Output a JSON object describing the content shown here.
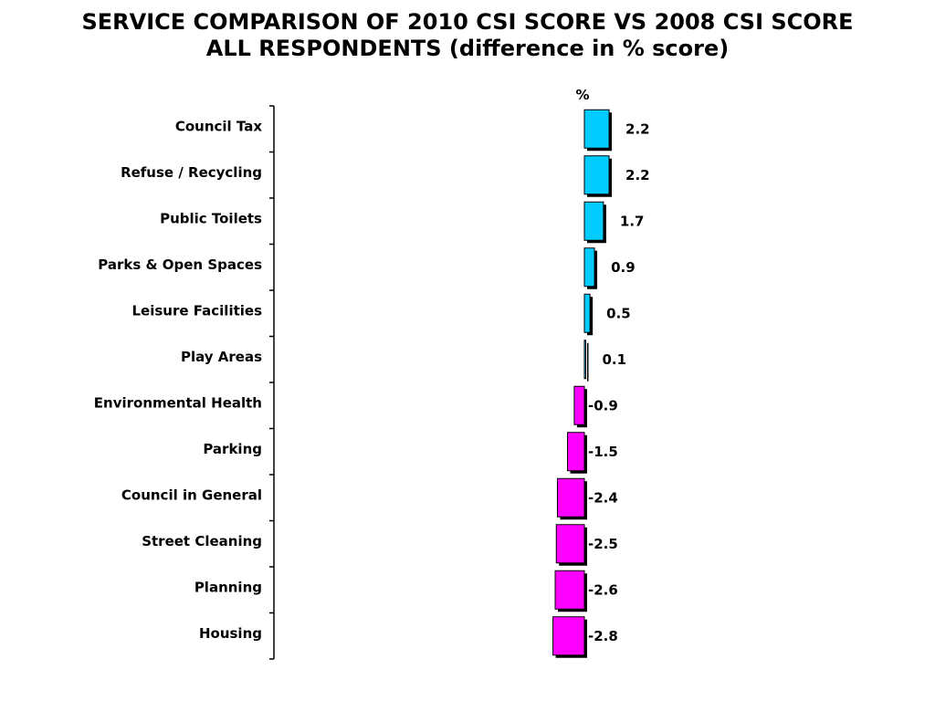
{
  "title_line1": "SERVICE COMPARISON OF 2010 CSI SCORE VS 2008 CSI SCORE",
  "title_line2": "ALL RESPONDENTS (difference in % score)",
  "colors": {
    "positive": "#00CCFF",
    "negative": "#FF00FF",
    "shadow": "#000000",
    "axis": "#000000"
  },
  "chart_data": {
    "type": "bar",
    "orientation": "horizontal",
    "title": "SERVICE COMPARISON OF 2010 CSI SCORE VS 2008 CSI SCORE ALL RESPONDENTS (difference in % score)",
    "unit_label": "%",
    "categories": [
      "Council Tax",
      "Refuse / Recycling",
      "Public Toilets",
      "Parks & Open Spaces",
      "Leisure Facilities",
      "Play Areas",
      "Environmental Health",
      "Parking",
      "Council in General",
      "Street Cleaning",
      "Planning",
      "Housing"
    ],
    "values": [
      2.2,
      2.2,
      1.7,
      0.9,
      0.5,
      0.1,
      -0.9,
      -1.5,
      -2.4,
      -2.5,
      -2.6,
      -2.8
    ],
    "data_labels": [
      "2.2",
      "2.2",
      "1.7",
      "0.9",
      "0.5",
      "0.1",
      "-0.9",
      "-1.5",
      "-2.4",
      "-2.5",
      "-2.6",
      "-2.8"
    ],
    "grid": false,
    "legend": "none"
  }
}
